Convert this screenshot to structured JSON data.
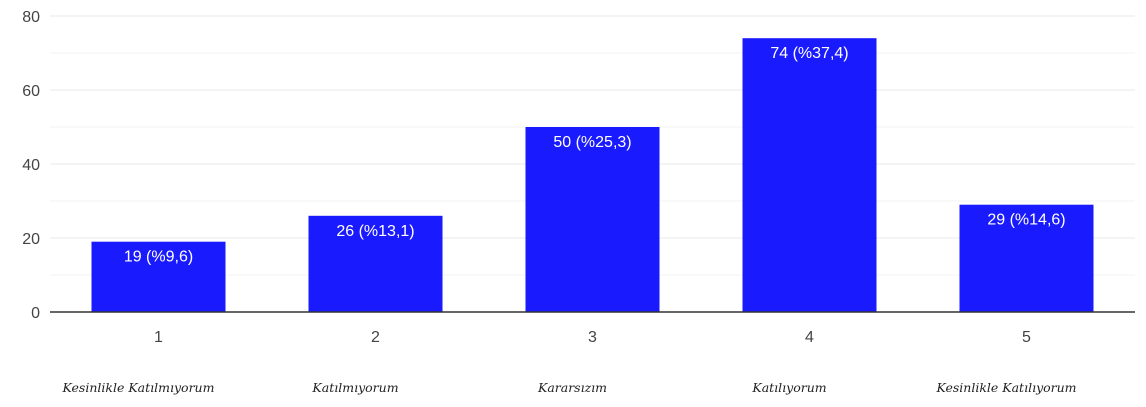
{
  "chart_data": {
    "type": "bar",
    "categories": [
      "1",
      "2",
      "3",
      "4",
      "5"
    ],
    "values": [
      19,
      26,
      50,
      74,
      29
    ],
    "data_labels": [
      "19 (%9,6)",
      "26 (%13,1)",
      "50 (%25,3)",
      "74 (%37,4)",
      "29 (%14,6)"
    ],
    "y_ticks": [
      "0",
      "20",
      "40",
      "60",
      "80"
    ],
    "ylim": [
      0,
      80
    ],
    "grid": true,
    "bar_color": "#1a1aff",
    "title": "",
    "xlabel": "",
    "ylabel": ""
  },
  "captions": [
    "Kesinlikle Katılmıyorum",
    "Katılmıyorum",
    "Kararsızım",
    "Katılıyorum",
    "Kesinlikle Katılıyorum"
  ]
}
